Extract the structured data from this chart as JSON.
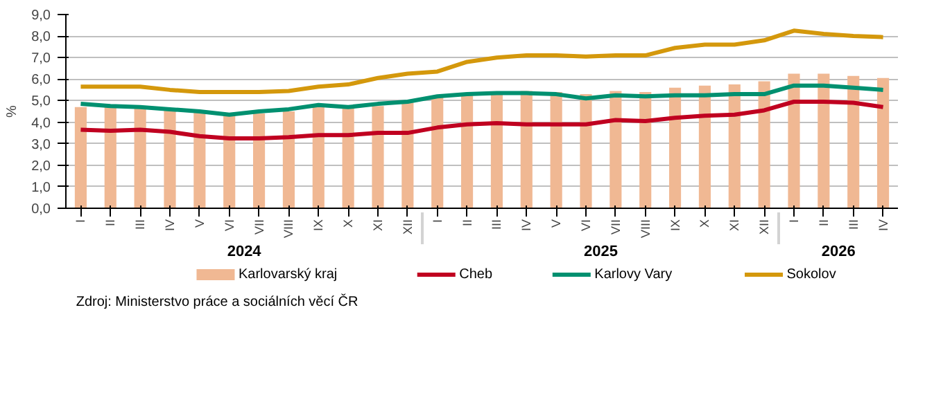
{
  "chart_data": {
    "type": "bar",
    "ylabel": "%",
    "categories": [
      "I",
      "II",
      "III",
      "IV",
      "V",
      "VI",
      "VII",
      "VIII",
      "IX",
      "X",
      "XI",
      "XII",
      "I",
      "II",
      "III",
      "IV",
      "V",
      "VI",
      "VII",
      "VIII",
      "IX",
      "X",
      "XI",
      "XII",
      "I",
      "II",
      "III",
      "IV"
    ],
    "series": [
      {
        "name": "Karlovarský kraj",
        "color": "#f0b893",
        "values": [
          4.7,
          4.7,
          4.65,
          4.55,
          4.45,
          4.35,
          4.4,
          4.5,
          4.7,
          4.7,
          4.75,
          4.9,
          5.2,
          5.3,
          5.3,
          5.45,
          5.4,
          5.3,
          5.45,
          5.4,
          5.6,
          5.7,
          5.75,
          5.9,
          6.25,
          6.25,
          6.15,
          6.05
        ]
      },
      {
        "name": "Cheb",
        "type": "line",
        "color": "#c00020",
        "values": [
          3.65,
          3.6,
          3.65,
          3.55,
          3.35,
          3.25,
          3.25,
          3.3,
          3.4,
          3.4,
          3.5,
          3.5,
          3.75,
          3.9,
          3.95,
          3.9,
          3.9,
          3.9,
          4.1,
          4.05,
          4.2,
          4.3,
          4.35,
          4.55,
          4.95,
          4.95,
          4.9,
          4.7
        ]
      },
      {
        "name": "Karlovy Vary",
        "type": "line",
        "color": "#009070",
        "values": [
          4.85,
          4.75,
          4.7,
          4.6,
          4.5,
          4.35,
          4.5,
          4.6,
          4.8,
          4.7,
          4.85,
          4.95,
          5.2,
          5.3,
          5.35,
          5.35,
          5.3,
          5.1,
          5.25,
          5.2,
          5.25,
          5.25,
          5.3,
          5.3,
          5.7,
          5.7,
          5.6,
          5.5
        ]
      },
      {
        "name": "Sokolov",
        "type": "line",
        "color": "#d4980c",
        "values": [
          5.65,
          5.65,
          5.65,
          5.5,
          5.4,
          5.4,
          5.4,
          5.45,
          5.65,
          5.75,
          6.05,
          6.25,
          6.35,
          6.8,
          7.0,
          7.1,
          7.1,
          7.05,
          7.1,
          7.1,
          7.45,
          7.6,
          7.6,
          7.8,
          8.25,
          8.1,
          8.0,
          7.95
        ]
      }
    ],
    "ylim": [
      0,
      9
    ],
    "yticks": [
      {
        "value": 0,
        "label": "0,0"
      },
      {
        "value": 1,
        "label": "1,0"
      },
      {
        "value": 2,
        "label": "2,0"
      },
      {
        "value": 3,
        "label": "3,0"
      },
      {
        "value": 4,
        "label": "4,0"
      },
      {
        "value": 5,
        "label": "5,0"
      },
      {
        "value": 6,
        "label": "6,0"
      },
      {
        "value": 7,
        "label": "7,0"
      },
      {
        "value": 8,
        "label": "8,0"
      },
      {
        "value": 9,
        "label": "9,0"
      }
    ],
    "grid": "y",
    "legend": "bottom",
    "annotations": [
      "2024",
      "2025",
      "2026",
      "Zdroj: Ministerstvo práce a sociálních věcí ČR"
    ]
  }
}
